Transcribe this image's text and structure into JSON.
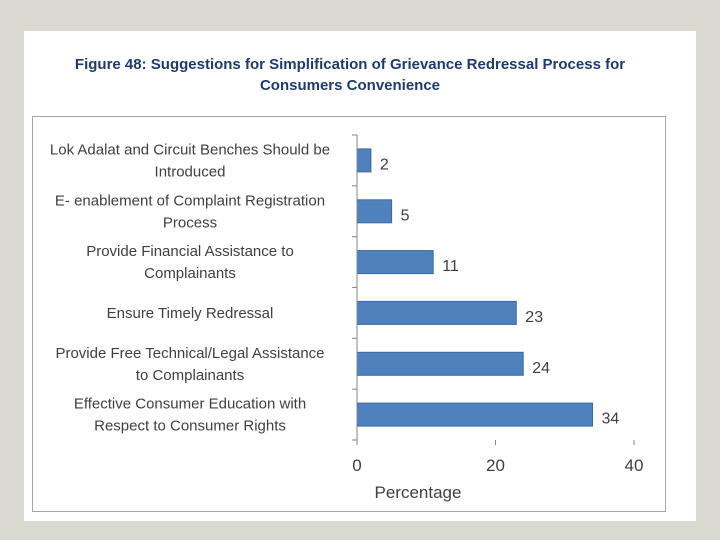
{
  "chart_data": {
    "type": "bar",
    "orientation": "horizontal",
    "title": "Figure 48: Suggestions for Simplification of Grievance Redressal Process for Consumers Convenience",
    "title_lines": [
      "Figure 48: Suggestions for Simplification of Grievance Redressal Process for",
      "Consumers Convenience"
    ],
    "categories": [
      [
        "Lok Adalat and Circuit Benches Should be",
        "Introduced"
      ],
      [
        "E- enablement of Complaint Registration",
        "Process"
      ],
      [
        "Provide Financial Assistance to",
        "Complainants"
      ],
      [
        "Ensure Timely Redressal"
      ],
      [
        "Provide Free Technical/Legal Assistance",
        "to Complainants"
      ],
      [
        "Effective Consumer Education with",
        "Respect to Consumer Rights"
      ]
    ],
    "values": [
      2,
      5,
      11,
      23,
      24,
      34
    ],
    "xlabel": "Percentage",
    "ylabel": "",
    "xlim": [
      0,
      40
    ],
    "xticks": [
      0,
      20,
      40
    ],
    "grid": false,
    "legend": "none",
    "bar_color": "#4f81bd",
    "bar_edge_color": "#3a6aa6"
  }
}
